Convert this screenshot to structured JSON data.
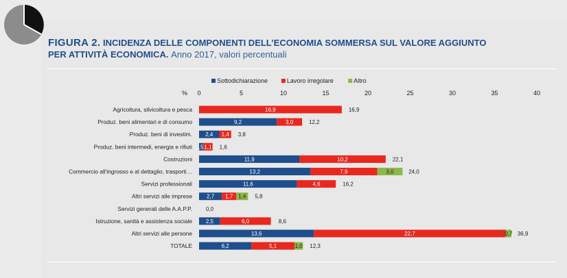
{
  "figure": {
    "label": "FIGURA 2.",
    "title_bold_1": "INCIDENZA DELLE COMPONENTI DELL’ECONOMIA SOMMERSA SUL VALORE AGGIUNTO",
    "title_bold_2": "PER ATTIVITÀ ECONOMICA.",
    "title_rest": "Anno 2017, valori percentuali"
  },
  "colors": {
    "sottodichiarazione": "#1f4e8c",
    "lavoro_irregolare": "#e8281f",
    "altro": "#8db74a",
    "pie_dark": "#111111",
    "pie_light": "#8c8c8c"
  },
  "chart_data": {
    "type": "bar",
    "orientation": "horizontal",
    "stacked": true,
    "axis_unit_label": "%",
    "xlim": [
      0,
      40
    ],
    "xticks": [
      "0",
      "5",
      "10",
      "15",
      "20",
      "25",
      "30",
      "35",
      "40"
    ],
    "legend_position": "top",
    "categories": [
      "Agricoltura, silvicoltura e pesca",
      "Produz. beni alimentari e di consumo",
      "Produz. beni di investim.",
      "Produz. beni intermedi, energia e rifiuti",
      "Costruzioni",
      "Commercio all'ingrosso e al dettaglio, trasporti…",
      "Servizi professionali",
      "Altri servizi alle imprese",
      "Servizi generali delle A.A.P.P.",
      "Istruzione, sanità e assistenza sociale",
      "Altri servizi alle persone",
      "TOTALE"
    ],
    "series": [
      {
        "name": "Sottodichiarazione",
        "values": [
          0.0,
          9.2,
          2.4,
          0.5,
          11.9,
          13.2,
          11.6,
          2.7,
          0.0,
          2.5,
          13.6,
          6.2
        ],
        "labels": [
          "0,0",
          "9,2",
          "2,4",
          ",5",
          "11,9",
          "13,2",
          "11,6",
          "2,7",
          "",
          "2,5",
          "13,6",
          "6,2"
        ]
      },
      {
        "name": "Lavoro irregolare",
        "values": [
          16.9,
          3.0,
          1.4,
          1.1,
          10.2,
          7.9,
          4.6,
          1.7,
          0.0,
          6.0,
          22.7,
          5.1
        ],
        "labels": [
          "16,9",
          "3,0",
          "1,4",
          "1,1",
          "10,2",
          "7,9",
          "4,6",
          "1,7",
          "",
          "6,0",
          "22,7",
          "5,1"
        ]
      },
      {
        "name": "Altro",
        "values": [
          0.0,
          0.0,
          0.0,
          0.0,
          0.0,
          3.0,
          0.0,
          1.4,
          0.0,
          0.0,
          0.7,
          1.0
        ],
        "labels": [
          "",
          "",
          "",
          "",
          "",
          "3,0",
          "",
          "1,4",
          "",
          "",
          "0,7",
          "1,0"
        ]
      }
    ],
    "totals": [
      16.9,
      12.2,
      3.8,
      1.6,
      22.1,
      24.0,
      16.2,
      5.8,
      0.0,
      8.6,
      36.9,
      12.3
    ],
    "total_labels": [
      "16,9",
      "12,2",
      "3,8",
      "1,6",
      "22,1",
      "24,0",
      "16,2",
      "5,8",
      "0,0",
      "8,6",
      "36,9",
      "12,3"
    ]
  }
}
